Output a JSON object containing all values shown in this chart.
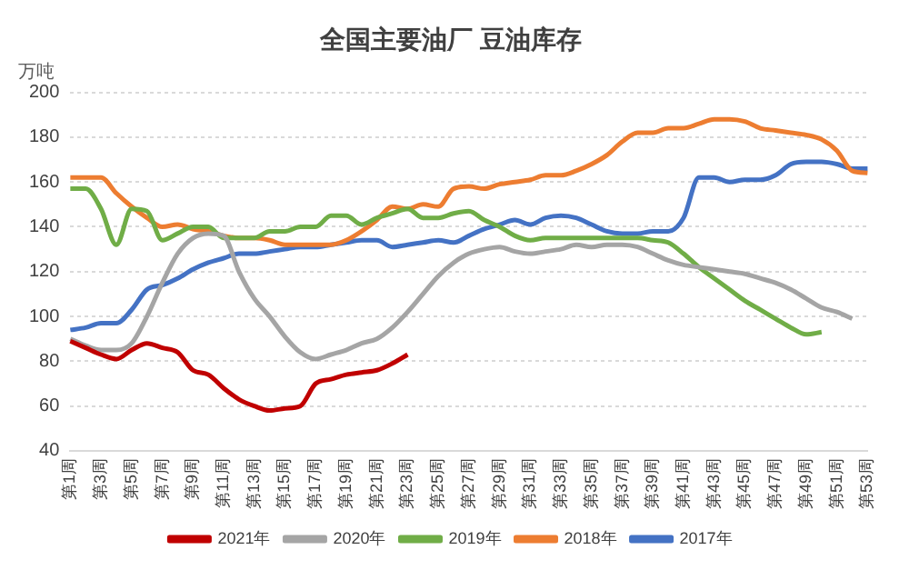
{
  "chart_data": {
    "type": "line",
    "title": "全国主要油厂 豆油库存",
    "ylabel": "万吨",
    "categories": [
      "第1周",
      null,
      "第3周",
      null,
      "第5周",
      null,
      "第7周",
      null,
      "第9周",
      null,
      "第11周",
      null,
      "第13周",
      null,
      "第15周",
      null,
      "第17周",
      null,
      "第19周",
      null,
      "第21周",
      null,
      "第23周",
      null,
      "第25周",
      null,
      "第27周",
      null,
      "第29周",
      null,
      "第31周",
      null,
      "第33周",
      null,
      "第35周",
      null,
      "第37周",
      null,
      "第39周",
      null,
      "第41周",
      null,
      "第43周",
      null,
      "第45周",
      null,
      "第47周",
      null,
      "第49周",
      null,
      "第51周",
      null,
      "第53周"
    ],
    "series": [
      {
        "name": "2021年",
        "color": "#c00000",
        "values": [
          89,
          86,
          83,
          81,
          85,
          88,
          86,
          84,
          76,
          74,
          68,
          63,
          60,
          58,
          59,
          60,
          70,
          72,
          74,
          75,
          76,
          79,
          83,
          null,
          null,
          null,
          null,
          null,
          null,
          null,
          null,
          null,
          null,
          null,
          null,
          null,
          null,
          null,
          null,
          null,
          null,
          null,
          null,
          null,
          null,
          null,
          null,
          null,
          null,
          null,
          null,
          null,
          null
        ]
      },
      {
        "name": "2020年",
        "color": "#a5a5a5",
        "values": [
          90,
          87,
          85,
          85,
          88,
          100,
          115,
          128,
          135,
          137,
          136,
          120,
          108,
          100,
          91,
          84,
          81,
          83,
          85,
          88,
          90,
          95,
          102,
          110,
          118,
          124,
          128,
          130,
          131,
          129,
          128,
          129,
          130,
          132,
          131,
          132,
          132,
          131,
          128,
          125,
          123,
          122,
          121,
          120,
          119,
          117,
          115,
          112,
          108,
          104,
          102,
          99,
          null
        ]
      },
      {
        "name": "2019年",
        "color": "#70ad47",
        "values": [
          157,
          157,
          148,
          132,
          148,
          147,
          134,
          137,
          140,
          140,
          135,
          135,
          135,
          138,
          138,
          140,
          140,
          145,
          145,
          141,
          144,
          146,
          148,
          144,
          144,
          146,
          147,
          143,
          140,
          136,
          134,
          135,
          135,
          135,
          135,
          135,
          135,
          135,
          134,
          133,
          128,
          122,
          117,
          112,
          107,
          103,
          99,
          95,
          92,
          93,
          null,
          null,
          null
        ]
      },
      {
        "name": "2018年",
        "color": "#ed7d31",
        "values": [
          162,
          162,
          162,
          155,
          149,
          144,
          140,
          141,
          139,
          138,
          136,
          135,
          135,
          134,
          132,
          132,
          132,
          132,
          134,
          138,
          143,
          149,
          148,
          150,
          149,
          157,
          158,
          157,
          159,
          160,
          161,
          163,
          163,
          165,
          168,
          172,
          178,
          182,
          182,
          184,
          184,
          186,
          188,
          188,
          187,
          184,
          183,
          182,
          181,
          179,
          174,
          165,
          164
        ]
      },
      {
        "name": "2017年",
        "color": "#4472c4",
        "values": [
          94,
          95,
          97,
          97,
          103,
          112,
          114,
          117,
          121,
          124,
          126,
          128,
          128,
          129,
          130,
          131,
          131,
          132,
          133,
          134,
          134,
          131,
          132,
          133,
          134,
          133,
          136,
          139,
          141,
          143,
          141,
          144,
          145,
          144,
          141,
          138,
          137,
          137,
          138,
          138,
          144,
          162,
          162,
          160,
          161,
          161,
          163,
          168,
          169,
          169,
          168,
          166,
          166
        ]
      }
    ],
    "ylim": [
      40,
      200
    ],
    "yticks": [
      40,
      60,
      80,
      100,
      120,
      140,
      160,
      180,
      200
    ],
    "grid": "y",
    "legend": "bottom",
    "marker": "none",
    "line_style": "solid"
  }
}
